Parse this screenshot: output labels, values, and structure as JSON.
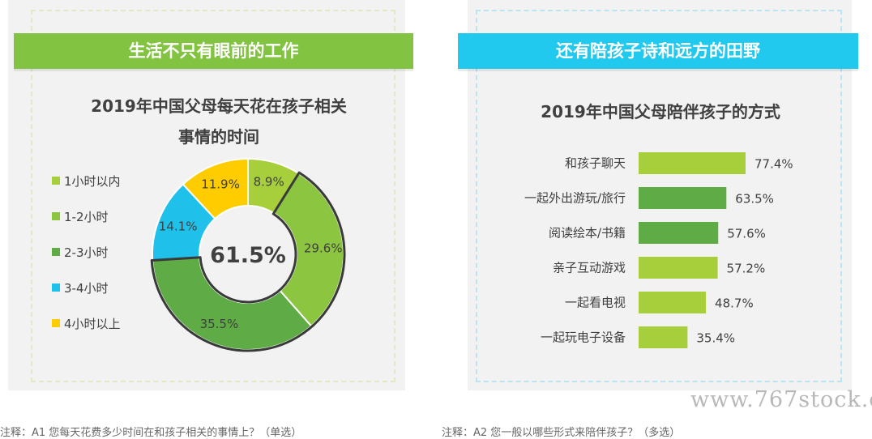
{
  "left": {
    "banner": "生活不只有眼前的工作",
    "title_line1": "2019年中国父母每天花在孩子相关",
    "title_line2": "事情的时间"
  },
  "right": {
    "banner": "还有陪孩子诗和远方的田野",
    "title": "2019年中国父母陪伴孩子的方式"
  },
  "chart_data": [
    {
      "type": "pie",
      "title": "2019年中国父母每天花在孩子相关事情的时间",
      "center_label": "61.5%",
      "categories": [
        "1小时以内",
        "1-2小时",
        "2-3小时",
        "3-4小时",
        "4小时以上"
      ],
      "values": [
        8.9,
        29.6,
        35.5,
        14.1,
        11.9
      ],
      "labels": [
        "8.9%",
        "29.6%",
        "35.5%",
        "14.1%",
        "11.9%"
      ],
      "colors": [
        "#a7cf3b",
        "#8cc540",
        "#5fab45",
        "#1fc1ea",
        "#ffcc00"
      ],
      "highlighted": [
        "1-2小时",
        "2-3小时"
      ],
      "legend_position": "left"
    },
    {
      "type": "bar",
      "orientation": "horizontal",
      "title": "2019年中国父母陪伴孩子的方式",
      "categories": [
        "和孩子聊天",
        "一起外出游玩/旅行",
        "阅读绘本/书籍",
        "亲子互动游戏",
        "一起看电视",
        "一起玩电子设备"
      ],
      "values": [
        77.4,
        63.5,
        57.6,
        57.2,
        48.7,
        35.4
      ],
      "labels": [
        "77.4%",
        "63.5%",
        "57.6%",
        "57.2%",
        "48.7%",
        "35.4%"
      ],
      "colors": [
        "#a7cf3b",
        "#5fab45",
        "#5fab45",
        "#a7cf3b",
        "#a7cf3b",
        "#a7cf3b"
      ]
    }
  ],
  "footnotes": {
    "left": "注释：A1 您每天花费多少时间在和孩子相关的事情上？（单选）",
    "right": "注释：A2 您一般以哪些形式来陪伴孩子？（多选）"
  },
  "watermark": "www.767stock.c"
}
